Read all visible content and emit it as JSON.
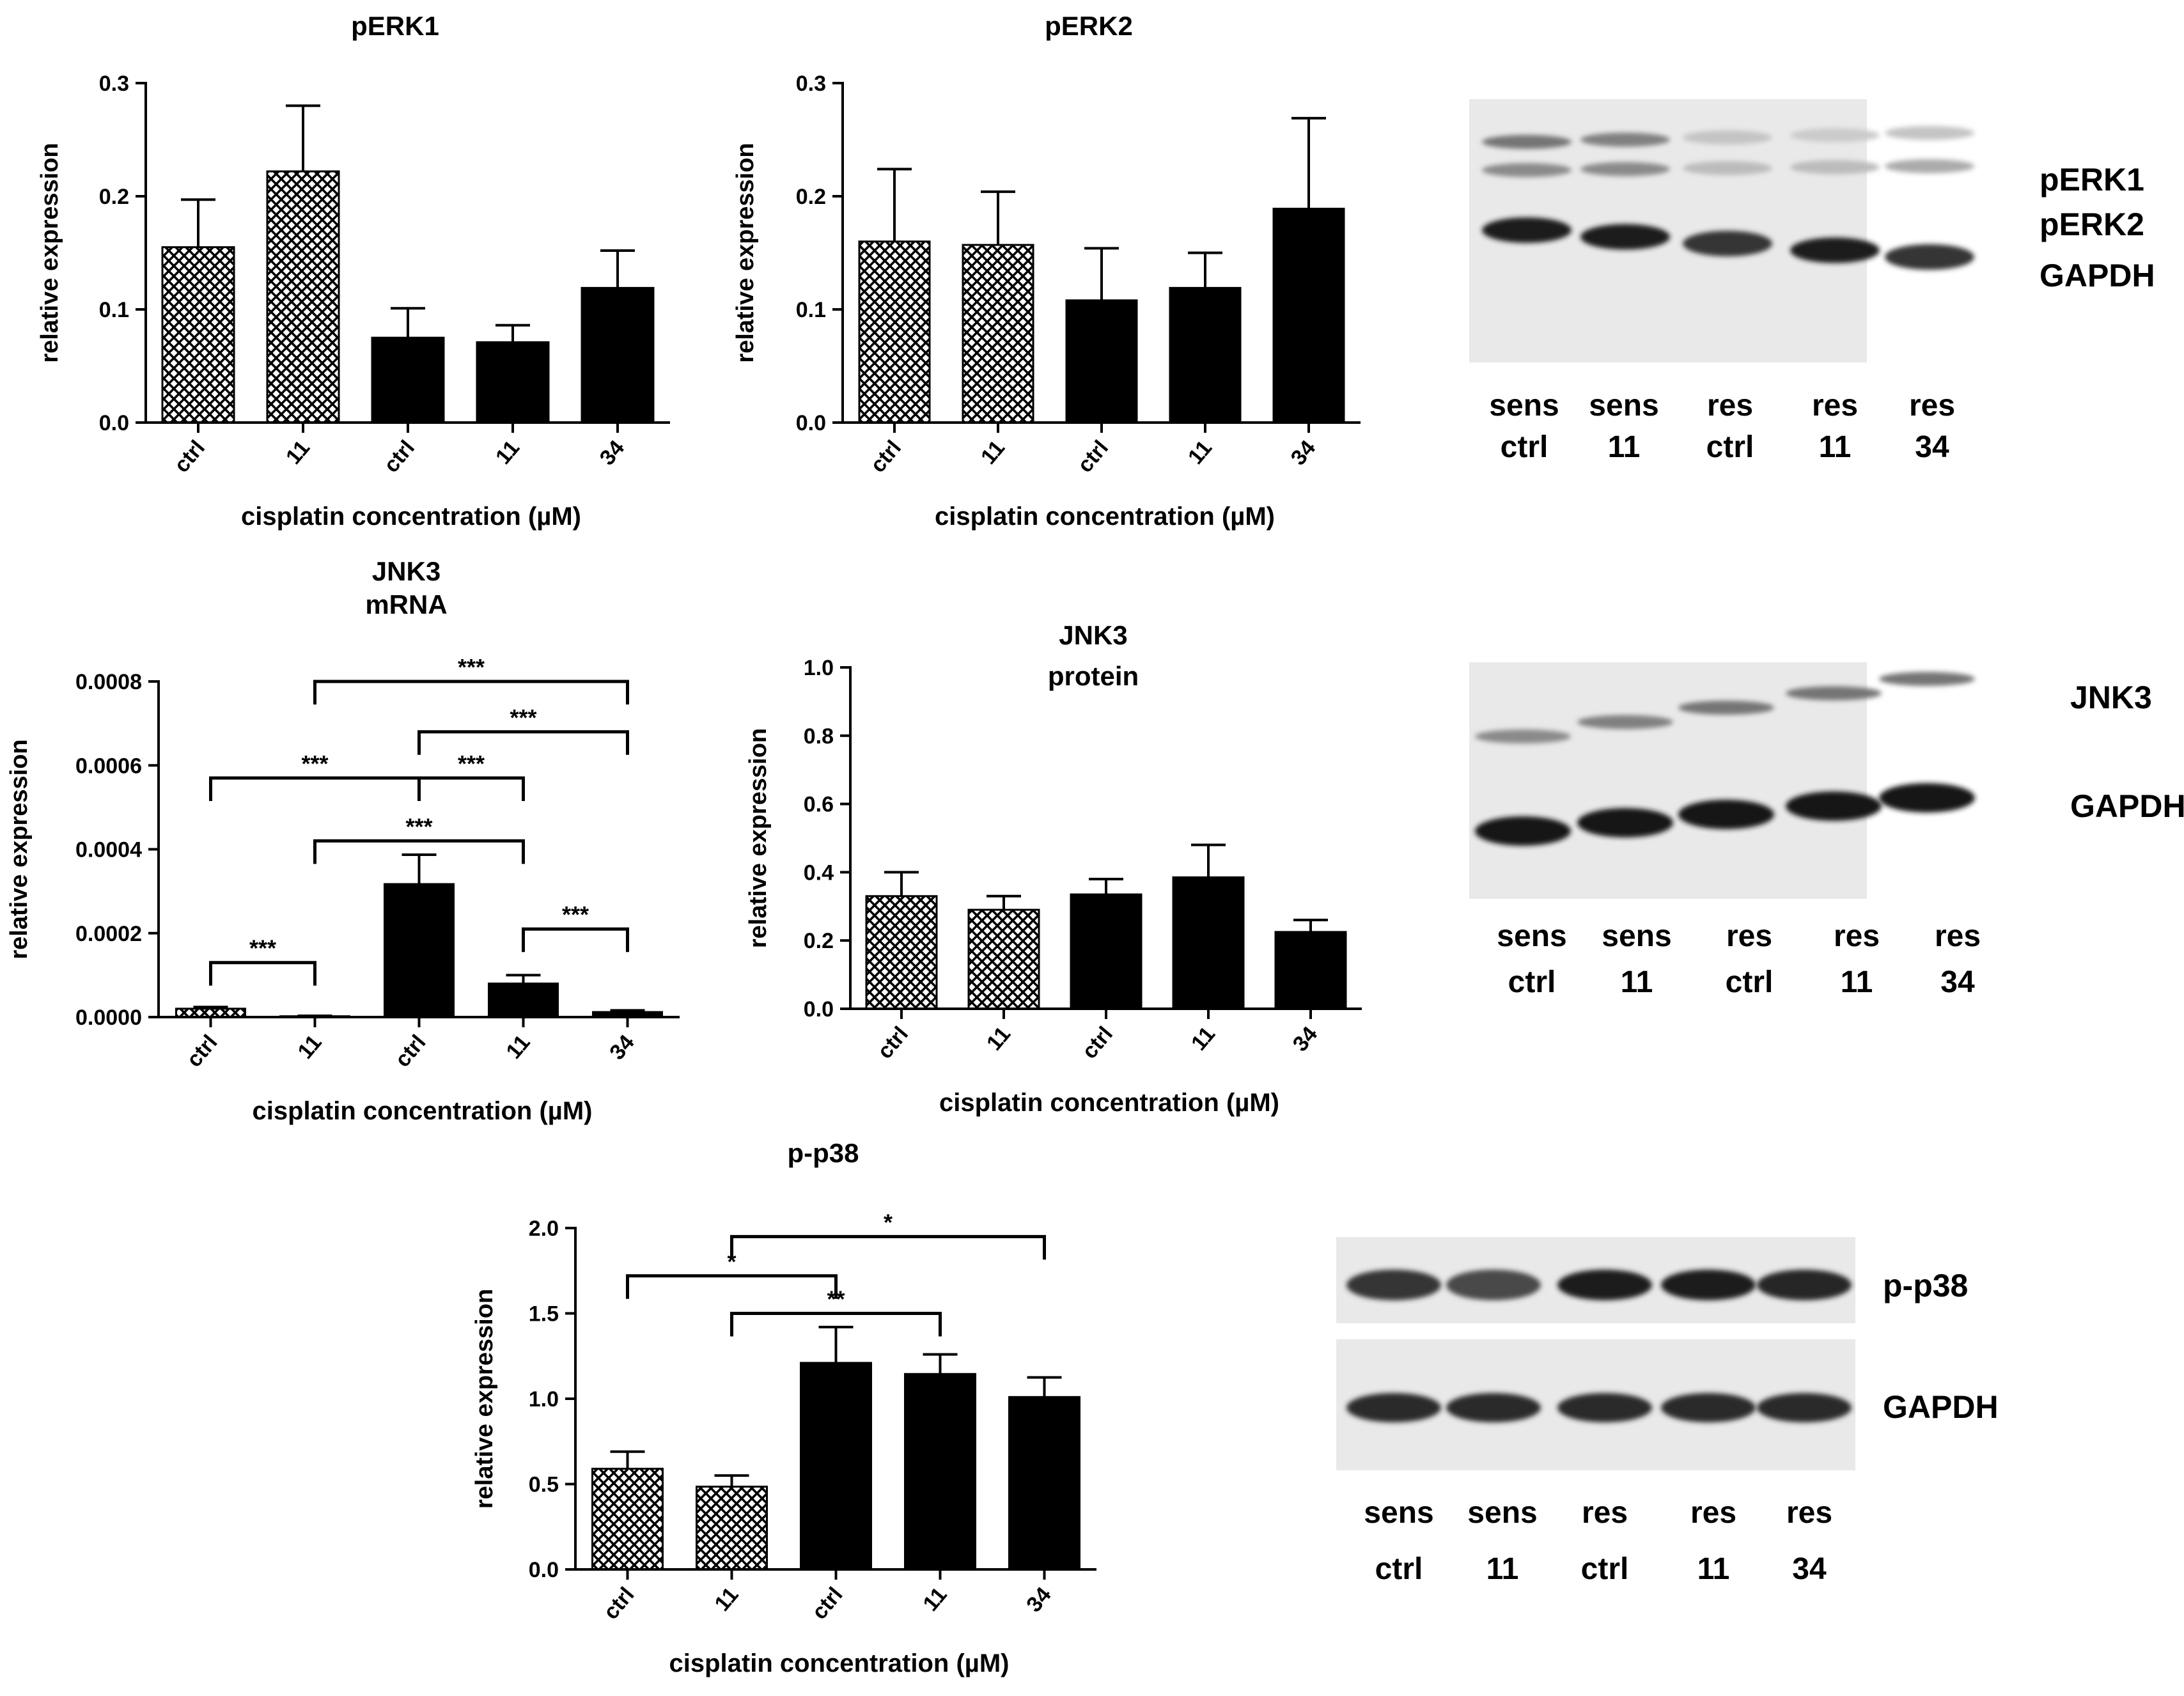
{
  "figure": {
    "xlabel": "cisplatin concentration (µM)",
    "ylabel": "relative expression",
    "lane_groups": [
      "sens",
      "sens",
      "res",
      "res",
      "res"
    ],
    "lane_doses": [
      "ctrl",
      "11",
      "ctrl",
      "11",
      "34"
    ]
  },
  "chart_data": [
    {
      "type": "bar",
      "title": [
        "pERK1"
      ],
      "categories": [
        "ctrl",
        "11",
        "ctrl",
        "11",
        "34"
      ],
      "group": [
        "sens",
        "sens",
        "res",
        "res",
        "res"
      ],
      "values": [
        0.155,
        0.222,
        0.075,
        0.071,
        0.119
      ],
      "errors": [
        0.042,
        0.058,
        0.026,
        0.015,
        0.033
      ],
      "ylim": [
        0,
        0.3
      ],
      "yticks": [
        0.0,
        0.1,
        0.2,
        0.3
      ],
      "ytick_labels": [
        "0.0",
        "0.1",
        "0.2",
        "0.3"
      ],
      "xlabel": "cisplatin concentration (µM)",
      "ylabel": "relative expression",
      "significance": []
    },
    {
      "type": "bar",
      "title": [
        "pERK2"
      ],
      "categories": [
        "ctrl",
        "11",
        "ctrl",
        "11",
        "34"
      ],
      "group": [
        "sens",
        "sens",
        "res",
        "res",
        "res"
      ],
      "values": [
        0.16,
        0.157,
        0.108,
        0.119,
        0.189
      ],
      "errors": [
        0.064,
        0.047,
        0.046,
        0.031,
        0.08
      ],
      "ylim": [
        0,
        0.3
      ],
      "yticks": [
        0.0,
        0.1,
        0.2,
        0.3
      ],
      "ytick_labels": [
        "0.0",
        "0.1",
        "0.2",
        "0.3"
      ],
      "xlabel": "cisplatin concentration (µM)",
      "ylabel": "relative expression",
      "significance": []
    },
    {
      "type": "bar",
      "title": [
        "JNK3",
        "mRNA"
      ],
      "categories": [
        "ctrl",
        "11",
        "ctrl",
        "11",
        "34"
      ],
      "group": [
        "sens",
        "sens",
        "res",
        "res",
        "res"
      ],
      "values": [
        2e-05,
        2e-06,
        0.000317,
        8e-05,
        1.2e-05
      ],
      "errors": [
        4e-06,
        1e-06,
        7e-05,
        2e-05,
        4e-06
      ],
      "ylim": [
        0,
        0.0008
      ],
      "yticks": [
        0,
        0.0002,
        0.0004,
        0.0006,
        0.0008
      ],
      "ytick_labels": [
        "0.0000",
        "0.0002",
        "0.0004",
        "0.0006",
        "0.0008"
      ],
      "xlabel": "cisplatin concentration (µM)",
      "ylabel": "relative expression",
      "significance": [
        {
          "from": 0,
          "to": 1,
          "y": 0.00013,
          "label": "***"
        },
        {
          "from": 3,
          "to": 4,
          "y": 0.00021,
          "label": "***"
        },
        {
          "from": 1,
          "to": 3,
          "y": 0.00042,
          "label": "***"
        },
        {
          "from": 2,
          "to": 3,
          "y": 0.00057,
          "label": "***"
        },
        {
          "from": 0,
          "to": 2,
          "y": 0.00057,
          "label": "***"
        },
        {
          "from": 2,
          "to": 4,
          "y": 0.00068,
          "label": "***"
        },
        {
          "from": 1,
          "to": 4,
          "y": 0.0008,
          "label": "***"
        }
      ]
    },
    {
      "type": "bar",
      "title": [
        "JNK3",
        "protein"
      ],
      "categories": [
        "ctrl",
        "11",
        "ctrl",
        "11",
        "34"
      ],
      "group": [
        "sens",
        "sens",
        "res",
        "res",
        "res"
      ],
      "values": [
        0.33,
        0.29,
        0.335,
        0.385,
        0.225
      ],
      "errors": [
        0.07,
        0.04,
        0.045,
        0.095,
        0.035
      ],
      "ylim": [
        0,
        1.0
      ],
      "yticks": [
        0,
        0.2,
        0.4,
        0.6,
        0.8,
        1.0
      ],
      "ytick_labels": [
        "0.0",
        "0.2",
        "0.4",
        "0.6",
        "0.8",
        "1.0"
      ],
      "xlabel": "cisplatin concentration (µM)",
      "ylabel": "relative expression",
      "significance": []
    },
    {
      "type": "bar",
      "title": [
        "p-p38"
      ],
      "categories": [
        "ctrl",
        "11",
        "ctrl",
        "11",
        "34"
      ],
      "group": [
        "sens",
        "sens",
        "res",
        "res",
        "res"
      ],
      "values": [
        0.59,
        0.485,
        1.21,
        1.145,
        1.01
      ],
      "errors": [
        0.1,
        0.065,
        0.21,
        0.115,
        0.115
      ],
      "ylim": [
        0,
        2.0
      ],
      "yticks": [
        0,
        0.5,
        1.0,
        1.5,
        2.0
      ],
      "ytick_labels": [
        "0.0",
        "0.5",
        "1.0",
        "1.5",
        "2.0"
      ],
      "xlabel": "cisplatin concentration (µM)",
      "ylabel": "relative expression",
      "significance": [
        {
          "from": 1,
          "to": 3,
          "y": 1.5,
          "label": "**"
        },
        {
          "from": 0,
          "to": 2,
          "y": 1.72,
          "label": "*"
        },
        {
          "from": 1,
          "to": 4,
          "y": 1.95,
          "label": "*"
        }
      ]
    }
  ],
  "blots": [
    {
      "id": "erk",
      "bands": [
        "pERK1",
        "pERK2",
        "GAPDH"
      ],
      "band_intensity": [
        [
          0.55,
          0.5,
          0.18,
          0.15,
          0.18
        ],
        [
          0.45,
          0.45,
          0.22,
          0.22,
          0.3
        ],
        [
          0.95,
          0.95,
          0.85,
          0.95,
          0.85
        ]
      ]
    },
    {
      "id": "jnk3",
      "bands": [
        "JNK3",
        "GAPDH"
      ],
      "band_intensity": [
        [
          0.45,
          0.5,
          0.55,
          0.55,
          0.55
        ],
        [
          1.0,
          1.0,
          1.0,
          1.0,
          1.0
        ]
      ]
    },
    {
      "id": "p38",
      "bands": [
        "p-p38",
        "GAPDH"
      ],
      "band_intensity": [
        [
          0.85,
          0.75,
          0.95,
          0.95,
          0.92
        ],
        [
          0.9,
          0.9,
          0.9,
          0.9,
          0.9
        ]
      ]
    }
  ]
}
